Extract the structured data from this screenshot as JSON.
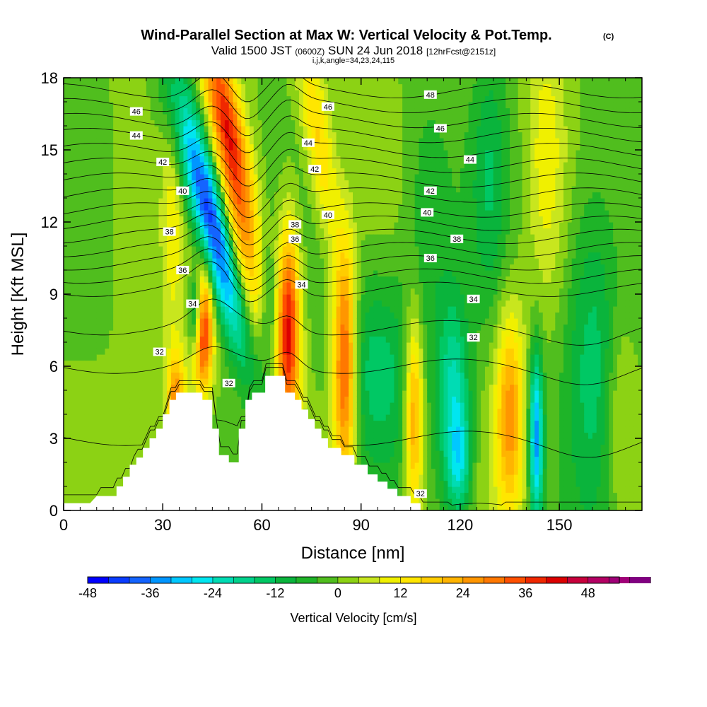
{
  "chart_data": {
    "type": "heatmap",
    "title": "Wind-Parallel Section at Max W: Vertical Velocity & Pot.Temp.",
    "title_mark": "(C)",
    "subtitle_main": "Valid 1500 JST",
    "subtitle_z": "(0600Z)",
    "subtitle_date": "SUN 24 Jun 2018",
    "subtitle_fcst": "[12hrFcst@2151z]",
    "subtitle2": "i,j,k,angle=34,23,24,115",
    "xlabel": "Distance [nm]",
    "ylabel": "Height [Kft MSL]",
    "xlim": [
      0,
      175
    ],
    "ylim": [
      0,
      18
    ],
    "x_ticks": [
      0,
      30,
      60,
      90,
      120,
      150
    ],
    "y_ticks": [
      0,
      3,
      6,
      9,
      12,
      15,
      18
    ],
    "colorbar": {
      "label": "Vertical Velocity [cm/s]",
      "range": [
        -48,
        54
      ],
      "step": 4,
      "tick_values": [
        -48,
        -36,
        -24,
        -12,
        0,
        12,
        24,
        36,
        48
      ],
      "tick_labels": [
        "-48",
        "-36",
        "-24",
        "-12",
        "0",
        "12",
        "24",
        "36",
        "48"
      ],
      "colors": [
        "#0000ff",
        "#0a3cff",
        "#1464ff",
        "#0096ff",
        "#00c8ff",
        "#00e6f0",
        "#00dcb4",
        "#00d28c",
        "#00c864",
        "#0ab43c",
        "#1eb428",
        "#50be1e",
        "#8cd214",
        "#c8e61e",
        "#f0f000",
        "#ffe600",
        "#ffcd00",
        "#ffb400",
        "#ff9600",
        "#ff7800",
        "#ff5000",
        "#f02800",
        "#dc0000",
        "#c8003c",
        "#b40064",
        "#a00078",
        "#800080"
      ]
    },
    "terrain_profile": [
      [
        0,
        0.3
      ],
      [
        8,
        0.3
      ],
      [
        10,
        0.6
      ],
      [
        16,
        0.6
      ],
      [
        16,
        1.0
      ],
      [
        18,
        1.0
      ],
      [
        18,
        1.4
      ],
      [
        20,
        1.4
      ],
      [
        20,
        1.9
      ],
      [
        22,
        1.9
      ],
      [
        22,
        2.2
      ],
      [
        24,
        2.2
      ],
      [
        24,
        2.6
      ],
      [
        26,
        2.6
      ],
      [
        26,
        3.0
      ],
      [
        28,
        3.0
      ],
      [
        28,
        3.4
      ],
      [
        30,
        3.4
      ],
      [
        30,
        4.0
      ],
      [
        32,
        4.0
      ],
      [
        32,
        4.6
      ],
      [
        34,
        4.6
      ],
      [
        34,
        4.9
      ],
      [
        42,
        4.9
      ],
      [
        42,
        4.6
      ],
      [
        45,
        4.6
      ],
      [
        45,
        3.4
      ],
      [
        47,
        3.4
      ],
      [
        47,
        2.3
      ],
      [
        50,
        2.3
      ],
      [
        50,
        2.0
      ],
      [
        53,
        2.0
      ],
      [
        53,
        3.4
      ],
      [
        55,
        3.4
      ],
      [
        55,
        4.6
      ],
      [
        57,
        4.6
      ],
      [
        57,
        4.9
      ],
      [
        61,
        4.9
      ],
      [
        61,
        5.6
      ],
      [
        67,
        5.6
      ],
      [
        67,
        4.9
      ],
      [
        70,
        4.9
      ],
      [
        70,
        4.6
      ],
      [
        72,
        4.6
      ],
      [
        72,
        4.2
      ],
      [
        74,
        4.2
      ],
      [
        74,
        3.8
      ],
      [
        76,
        3.8
      ],
      [
        76,
        3.4
      ],
      [
        78,
        3.4
      ],
      [
        78,
        3.0
      ],
      [
        80,
        3.0
      ],
      [
        80,
        2.6
      ],
      [
        84,
        2.6
      ],
      [
        84,
        2.3
      ],
      [
        88,
        2.3
      ],
      [
        88,
        1.9
      ],
      [
        92,
        1.9
      ],
      [
        92,
        1.5
      ],
      [
        95,
        1.5
      ],
      [
        95,
        1.2
      ],
      [
        98,
        1.2
      ],
      [
        98,
        0.9
      ],
      [
        101,
        0.9
      ],
      [
        101,
        0.6
      ],
      [
        105,
        0.6
      ],
      [
        105,
        0.3
      ],
      [
        108,
        0.3
      ],
      [
        108,
        0
      ]
    ],
    "w_features": [
      {
        "x": 45,
        "y": 12.0,
        "sx": 4,
        "sy": 4.0,
        "amp": -46,
        "tilt": -1.8
      },
      {
        "x": 40,
        "y": 8.2,
        "sx": 1.5,
        "sy": 1.2,
        "amp": -30,
        "tilt": 0
      },
      {
        "x": 42,
        "y": 7.5,
        "sx": 2.2,
        "sy": 1.8,
        "amp": 42,
        "tilt": 0
      },
      {
        "x": 49,
        "y": 16.5,
        "sx": 3.5,
        "sy": 3.0,
        "amp": 32,
        "tilt": -1.5
      },
      {
        "x": 54,
        "y": 11.0,
        "sx": 3.5,
        "sy": 3.5,
        "amp": 24,
        "tilt": -1.2
      },
      {
        "x": 34,
        "y": 4.5,
        "sx": 2.0,
        "sy": 1.5,
        "amp": 28,
        "tilt": 0
      },
      {
        "x": 68,
        "y": 7.5,
        "sx": 2.5,
        "sy": 3.0,
        "amp": 42,
        "tilt": 0
      },
      {
        "x": 85,
        "y": 6.0,
        "sx": 2.5,
        "sy": 3.5,
        "amp": 38,
        "tilt": 0
      },
      {
        "x": 77,
        "y": 15.5,
        "sx": 3.0,
        "sy": 3.0,
        "amp": 18,
        "tilt": -1.0
      },
      {
        "x": 62,
        "y": 8.0,
        "sx": 2.0,
        "sy": 2.0,
        "amp": -12,
        "tilt": 0
      },
      {
        "x": 95,
        "y": 6.0,
        "sx": 8.0,
        "sy": 3.0,
        "amp": -14,
        "tilt": 0
      },
      {
        "x": 106,
        "y": 4.0,
        "sx": 2.0,
        "sy": 3.0,
        "amp": 28,
        "tilt": 0
      },
      {
        "x": 118,
        "y": 4.5,
        "sx": 3.5,
        "sy": 3.0,
        "amp": -22,
        "tilt": 0
      },
      {
        "x": 120,
        "y": 2.0,
        "sx": 2.5,
        "sy": 1.5,
        "amp": -16,
        "tilt": 0
      },
      {
        "x": 135,
        "y": 4.0,
        "sx": 3.0,
        "sy": 3.0,
        "amp": 26,
        "tilt": 0
      },
      {
        "x": 143,
        "y": 3.0,
        "sx": 1.5,
        "sy": 2.5,
        "amp": -34,
        "tilt": 0
      },
      {
        "x": 160,
        "y": 7.0,
        "sx": 6.0,
        "sy": 5.0,
        "amp": -14,
        "tilt": 0
      },
      {
        "x": 168,
        "y": 4.0,
        "sx": 3.0,
        "sy": 3.0,
        "amp": 8,
        "tilt": 0
      },
      {
        "x": 146,
        "y": 15.0,
        "sx": 4.0,
        "sy": 4.0,
        "amp": 10,
        "tilt": 0
      },
      {
        "x": 129,
        "y": 14.0,
        "sx": 4.0,
        "sy": 4.0,
        "amp": -10,
        "tilt": 0
      },
      {
        "x": 20,
        "y": 13.0,
        "sx": 4.0,
        "sy": 4.0,
        "amp": 6,
        "tilt": 0
      },
      {
        "x": 110,
        "y": 12.0,
        "sx": 5.0,
        "sy": 4.0,
        "amp": -8,
        "tilt": 0
      },
      {
        "x": 33,
        "y": 12.0,
        "sx": 2.5,
        "sy": 3.5,
        "amp": 10,
        "tilt": 0
      }
    ],
    "theta_levels": [
      30,
      31,
      32,
      33,
      34,
      35,
      36,
      37,
      38,
      39,
      40,
      41,
      42,
      43,
      44,
      45,
      46,
      47,
      48
    ],
    "contour_labels": [
      {
        "value": "46",
        "x": 22,
        "y": 16.6
      },
      {
        "value": "44",
        "x": 22,
        "y": 15.6
      },
      {
        "value": "42",
        "x": 30,
        "y": 14.5
      },
      {
        "value": "40",
        "x": 36,
        "y": 13.3
      },
      {
        "value": "38",
        "x": 32,
        "y": 11.6
      },
      {
        "value": "36",
        "x": 36,
        "y": 10.0
      },
      {
        "value": "34",
        "x": 39,
        "y": 8.6
      },
      {
        "value": "32",
        "x": 29,
        "y": 6.6
      },
      {
        "value": "32",
        "x": 50,
        "y": 5.3
      },
      {
        "value": "46",
        "x": 80,
        "y": 16.8
      },
      {
        "value": "44",
        "x": 74,
        "y": 15.3
      },
      {
        "value": "42",
        "x": 76,
        "y": 14.2
      },
      {
        "value": "40",
        "x": 80,
        "y": 12.3
      },
      {
        "value": "38",
        "x": 70,
        "y": 11.9
      },
      {
        "value": "36",
        "x": 70,
        "y": 11.3
      },
      {
        "value": "34",
        "x": 72,
        "y": 9.4
      },
      {
        "value": "48",
        "x": 111,
        "y": 17.3
      },
      {
        "value": "46",
        "x": 114,
        "y": 15.9
      },
      {
        "value": "44",
        "x": 123,
        "y": 14.6
      },
      {
        "value": "42",
        "x": 111,
        "y": 13.3
      },
      {
        "value": "40",
        "x": 110,
        "y": 12.4
      },
      {
        "value": "38",
        "x": 119,
        "y": 11.3
      },
      {
        "value": "36",
        "x": 111,
        "y": 10.5
      },
      {
        "value": "34",
        "x": 124,
        "y": 8.8
      },
      {
        "value": "32",
        "x": 124,
        "y": 7.2
      },
      {
        "value": "32",
        "x": 108,
        "y": 0.7
      }
    ]
  }
}
